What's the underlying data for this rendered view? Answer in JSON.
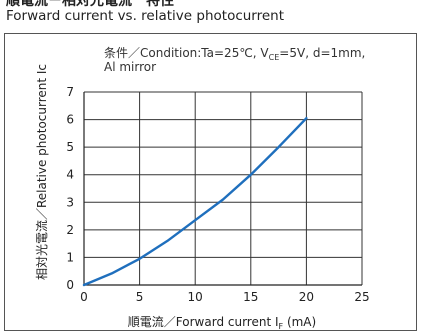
{
  "header": {
    "title_jp": "順電流－相対光電流　特性",
    "title_en": "Forward current vs. relative photocurrent"
  },
  "chart_data": {
    "type": "line",
    "condition": "条件／Condition:Ta=25℃, V",
    "condition_sub": "CE",
    "condition_rest": "=5V, d=1mm,",
    "condition_line2": "Al mirror",
    "xlabel": "順電流／Forward current I",
    "xlabel_sub": "F",
    "xlabel_unit": " (mA)",
    "ylabel": "相対光電流／Relative photocurrent Ic",
    "xlim": [
      0,
      25
    ],
    "ylim": [
      0,
      7
    ],
    "x_ticks": [
      "0",
      "5",
      "10",
      "15",
      "20",
      "25"
    ],
    "y_ticks": [
      "0",
      "1",
      "2",
      "3",
      "4",
      "5",
      "6",
      "7"
    ],
    "grid": true,
    "series": [
      {
        "color": "#1f6fbd",
        "x": [
          0,
          2.5,
          5,
          7.5,
          10,
          12.5,
          15,
          17.5,
          20
        ],
        "y": [
          0,
          0.42,
          0.95,
          1.6,
          2.35,
          3.1,
          4.0,
          5.0,
          6.05
        ]
      }
    ]
  }
}
